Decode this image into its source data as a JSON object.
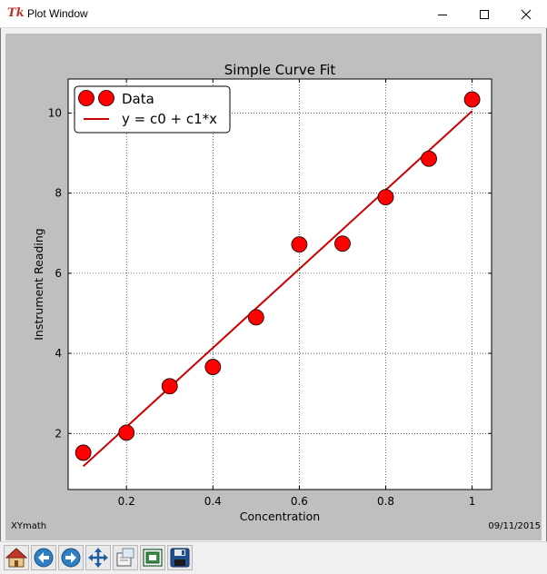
{
  "window": {
    "title": "Plot Window",
    "app_icon_text": "Tk",
    "controls": {
      "minimize": "minimize-icon",
      "maximize": "maximize-icon",
      "close": "close-icon"
    }
  },
  "plot": {
    "footer_left": "XYmath",
    "footer_right": "09/11/2015",
    "colors": {
      "marker": "#ff0000",
      "line": "#cc0000",
      "axes_bg": "#ffffff",
      "figure_bg": "#bfbfbf"
    }
  },
  "chart_data": {
    "type": "scatter",
    "title": "Simple Curve Fit",
    "xlabel": "Concentration",
    "ylabel": "Instrument Reading",
    "xlim": [
      0.065,
      1.045
    ],
    "ylim": [
      0.6,
      10.85
    ],
    "xticks": [
      0.2,
      0.4,
      0.6,
      0.8,
      1.0
    ],
    "xtick_labels": [
      "0.2",
      "0.4",
      "0.6",
      "0.8",
      "1"
    ],
    "yticks": [
      2,
      4,
      6,
      8,
      10
    ],
    "ytick_labels": [
      "2",
      "4",
      "6",
      "8",
      "10"
    ],
    "grid": true,
    "legend_position": "top-left",
    "series": [
      {
        "name": "Data",
        "kind": "markers",
        "color": "#ff0000",
        "x": [
          0.1,
          0.2,
          0.3,
          0.4,
          0.5,
          0.6,
          0.7,
          0.8,
          0.9,
          1.0
        ],
        "y": [
          1.52,
          2.02,
          3.18,
          3.66,
          4.9,
          6.72,
          6.74,
          7.9,
          8.86,
          10.34
        ]
      },
      {
        "name": "y = c0 + c1*x",
        "kind": "line",
        "color": "#cc0000",
        "x": [
          0.1,
          1.0
        ],
        "y": [
          1.18,
          10.05
        ]
      }
    ]
  },
  "toolbar": {
    "buttons": [
      {
        "name": "home-button",
        "icon": "home-icon"
      },
      {
        "name": "back-button",
        "icon": "arrow-left-icon"
      },
      {
        "name": "forward-button",
        "icon": "arrow-right-icon"
      },
      {
        "name": "pan-button",
        "icon": "move-icon"
      },
      {
        "name": "zoom-button",
        "icon": "zoom-rect-icon"
      },
      {
        "name": "subplots-button",
        "icon": "subplots-icon"
      },
      {
        "name": "save-button",
        "icon": "floppy-icon"
      }
    ]
  }
}
